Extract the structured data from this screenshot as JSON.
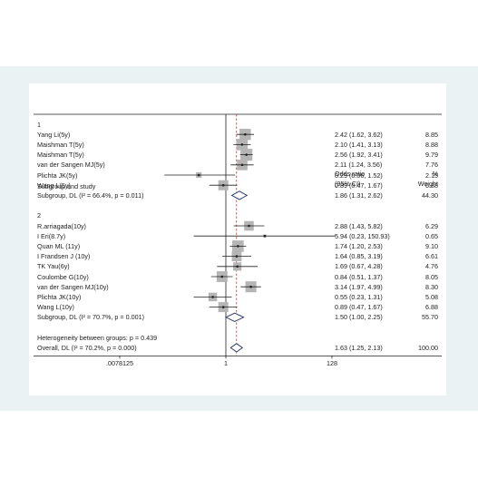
{
  "chart_data": {
    "type": "forest",
    "headers": {
      "study": "Subgroup and study",
      "or_line1": "Odds ratio",
      "or_line2": "(95% CI)",
      "weight_line1": "%",
      "weight_line2": "Weight"
    },
    "x_scale": "log2",
    "xlim": [
      0.0078125,
      128
    ],
    "xticks": [
      {
        "value": 0.0078125,
        "label": ".0078125"
      },
      {
        "value": 1,
        "label": "1"
      },
      {
        "value": 128,
        "label": "128"
      }
    ],
    "null_line": 1,
    "overall_line": 1.63,
    "groups": [
      {
        "label": "1",
        "studies": [
          {
            "name": "Yang Li(5y)",
            "or": 2.42,
            "lo": 1.62,
            "hi": 3.62,
            "ci_text": "2.42 (1.62, 3.62)",
            "weight": "8.85"
          },
          {
            "name": "Maishman T(5y)",
            "or": 2.1,
            "lo": 1.41,
            "hi": 3.13,
            "ci_text": "2.10 (1.41, 3.13)",
            "weight": "8.88"
          },
          {
            "name": "Maishman T(5y)",
            "or": 2.56,
            "lo": 1.92,
            "hi": 3.41,
            "ci_text": "2.56 (1.92, 3.41)",
            "weight": "9.79"
          },
          {
            "name": "van der Sangen MJ(5y)",
            "or": 2.11,
            "lo": 1.24,
            "hi": 3.56,
            "ci_text": "2.11 (1.24, 3.56)",
            "weight": "7.76"
          },
          {
            "name": "Plichta JK(5y)",
            "or": 0.29,
            "lo": 0.06,
            "hi": 1.52,
            "ci_text": "0.29 (0.06, 1.52)",
            "weight": "2.15"
          },
          {
            "name": "Wang L(5y)",
            "or": 0.89,
            "lo": 0.47,
            "hi": 1.67,
            "ci_text": "0.89 (0.47, 1.67)",
            "weight": "6.88"
          }
        ],
        "subtotal": {
          "label": "Subgroup, DL (I² = 66.4%, p = 0.011)",
          "or": 1.86,
          "lo": 1.31,
          "hi": 2.62,
          "ci_text": "1.86 (1.31, 2.62)",
          "weight": "44.30"
        }
      },
      {
        "label": "2",
        "studies": [
          {
            "name": "R.arriagada(10y)",
            "or": 2.88,
            "lo": 1.43,
            "hi": 5.82,
            "ci_text": "2.88 (1.43, 5.82)",
            "weight": "6.29"
          },
          {
            "name": "I Eri(8.7y)",
            "or": 5.94,
            "lo": 0.23,
            "hi": 150.93,
            "ci_text": "5.94 (0.23, 150.93)",
            "weight": "0.65"
          },
          {
            "name": "Quan ML (11y)",
            "or": 1.74,
            "lo": 1.2,
            "hi": 2.53,
            "ci_text": "1.74 (1.20, 2.53)",
            "weight": "9.10"
          },
          {
            "name": "I Frandsen J (10y)",
            "or": 1.64,
            "lo": 0.85,
            "hi": 3.19,
            "ci_text": "1.64 (0.85, 3.19)",
            "weight": "6.61"
          },
          {
            "name": "TK Yau(6y)",
            "or": 1.69,
            "lo": 0.67,
            "hi": 4.28,
            "ci_text": "1.69 (0.67, 4.28)",
            "weight": "4.76"
          },
          {
            "name": "Coulombe G(10y)",
            "or": 0.84,
            "lo": 0.51,
            "hi": 1.37,
            "ci_text": "0.84 (0.51, 1.37)",
            "weight": "8.05"
          },
          {
            "name": "van der Sangen MJ(10y)",
            "or": 3.14,
            "lo": 1.97,
            "hi": 4.99,
            "ci_text": "3.14 (1.97, 4.99)",
            "weight": "8.30"
          },
          {
            "name": "Plichta JK(10y)",
            "or": 0.55,
            "lo": 0.23,
            "hi": 1.31,
            "ci_text": "0.55 (0.23, 1.31)",
            "weight": "5.08"
          },
          {
            "name": "Wang L(10y)",
            "or": 0.89,
            "lo": 0.47,
            "hi": 1.67,
            "ci_text": "0.89 (0.47, 1.67)",
            "weight": "6.88"
          }
        ],
        "subtotal": {
          "label": "Subgroup, DL (I² = 70.7%, p = 0.001)",
          "or": 1.5,
          "lo": 1.0,
          "hi": 2.25,
          "ci_text": "1.50 (1.00, 2.25)",
          "weight": "55.70"
        }
      }
    ],
    "heterogeneity": "Heterogeneity between groups: p = 0.439",
    "overall": {
      "label": "Overall, DL (I² = 70.2%, p = 0.000)",
      "or": 1.63,
      "lo": 1.25,
      "hi": 2.13,
      "ci_text": "1.63 (1.25, 2.13)",
      "weight": "100.00"
    },
    "colors": {
      "box": "#b5b5b5",
      "diamond": "#2e3f70",
      "null_line": "#222222",
      "overall_line": "#b02020",
      "frame_bg": "#eaf2f3"
    }
  }
}
